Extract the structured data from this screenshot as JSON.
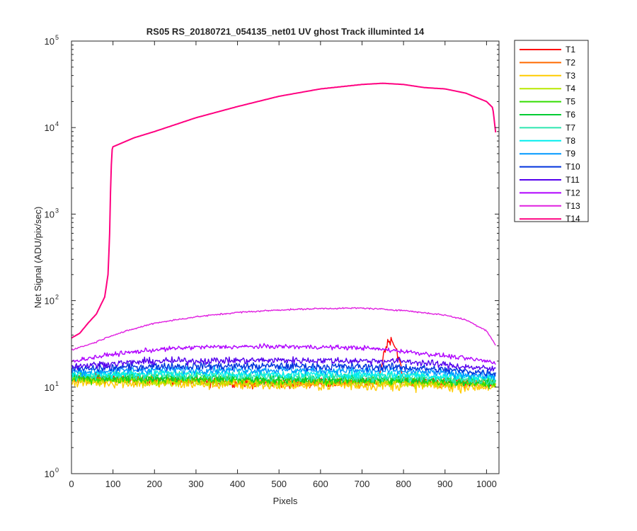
{
  "chart_data": {
    "type": "line",
    "title": "RS05 RS_20180721_054135_net01   UV ghost        Track illuminted 14",
    "xlabel": "Pixels",
    "ylabel": "Net Signal (ADU/pix/sec)",
    "xlim": [
      0,
      1030
    ],
    "ylim": [
      1,
      100000
    ],
    "yscale": "log",
    "xticks": [
      "0",
      "100",
      "200",
      "300",
      "400",
      "500",
      "600",
      "700",
      "800",
      "900",
      "1000"
    ],
    "yticks": [
      {
        "base": "10",
        "exp": "0"
      },
      {
        "base": "10",
        "exp": "1"
      },
      {
        "base": "10",
        "exp": "2"
      },
      {
        "base": "10",
        "exp": "3"
      },
      {
        "base": "10",
        "exp": "4"
      },
      {
        "base": "10",
        "exp": "5"
      }
    ],
    "grid": false,
    "legend_position": "outside-right",
    "series": [
      {
        "name": "T1",
        "color": "#ff0000",
        "noise": 0.06,
        "points": [
          [
            0,
            13
          ],
          [
            100,
            12.5
          ],
          [
            300,
            11.5
          ],
          [
            500,
            11
          ],
          [
            700,
            11.5
          ],
          [
            740,
            12
          ],
          [
            755,
            28
          ],
          [
            770,
            37
          ],
          [
            785,
            26
          ],
          [
            800,
            12
          ],
          [
            900,
            11.5
          ],
          [
            1000,
            11
          ],
          [
            1023,
            10.5
          ]
        ]
      },
      {
        "name": "T2",
        "color": "#ff6a00",
        "noise": 0.06,
        "points": [
          [
            0,
            12.5
          ],
          [
            200,
            12
          ],
          [
            500,
            11.2
          ],
          [
            800,
            11.2
          ],
          [
            1023,
            10.8
          ]
        ]
      },
      {
        "name": "T3",
        "color": "#ffcc00",
        "noise": 0.07,
        "points": [
          [
            0,
            11.5
          ],
          [
            200,
            11
          ],
          [
            500,
            10.5
          ],
          [
            800,
            10.5
          ],
          [
            1023,
            10
          ]
        ]
      },
      {
        "name": "T4",
        "color": "#b8e800",
        "noise": 0.06,
        "points": [
          [
            0,
            12
          ],
          [
            200,
            11.8
          ],
          [
            500,
            11.3
          ],
          [
            800,
            11.2
          ],
          [
            1023,
            10.8
          ]
        ]
      },
      {
        "name": "T5",
        "color": "#33dd00",
        "noise": 0.06,
        "points": [
          [
            0,
            12.5
          ],
          [
            200,
            12.5
          ],
          [
            500,
            12
          ],
          [
            800,
            12
          ],
          [
            1023,
            11.2
          ]
        ]
      },
      {
        "name": "T6",
        "color": "#00cc33",
        "noise": 0.06,
        "points": [
          [
            0,
            13
          ],
          [
            200,
            13
          ],
          [
            500,
            12.5
          ],
          [
            800,
            12.3
          ],
          [
            1023,
            11.5
          ]
        ]
      },
      {
        "name": "T7",
        "color": "#2ee6b0",
        "noise": 0.06,
        "points": [
          [
            0,
            13.5
          ],
          [
            200,
            13.8
          ],
          [
            500,
            13.3
          ],
          [
            800,
            13
          ],
          [
            1023,
            12
          ]
        ]
      },
      {
        "name": "T8",
        "color": "#00eeee",
        "noise": 0.055,
        "points": [
          [
            0,
            14
          ],
          [
            200,
            14.5
          ],
          [
            500,
            14.2
          ],
          [
            800,
            14
          ],
          [
            1023,
            12.8
          ]
        ]
      },
      {
        "name": "T9",
        "color": "#0099ff",
        "noise": 0.05,
        "points": [
          [
            0,
            15
          ],
          [
            200,
            16
          ],
          [
            500,
            15.8
          ],
          [
            800,
            15.3
          ],
          [
            1023,
            13.5
          ]
        ]
      },
      {
        "name": "T10",
        "color": "#0033dd",
        "noise": 0.05,
        "points": [
          [
            0,
            16
          ],
          [
            200,
            17.5
          ],
          [
            500,
            17.5
          ],
          [
            800,
            17
          ],
          [
            1023,
            14.5
          ]
        ]
      },
      {
        "name": "T11",
        "color": "#5500ee",
        "noise": 0.045,
        "points": [
          [
            0,
            17.5
          ],
          [
            200,
            20
          ],
          [
            500,
            20.5
          ],
          [
            800,
            20
          ],
          [
            1023,
            16
          ]
        ]
      },
      {
        "name": "T12",
        "color": "#b000ff",
        "noise": 0.03,
        "points": [
          [
            0,
            20
          ],
          [
            100,
            24
          ],
          [
            200,
            27
          ],
          [
            300,
            29
          ],
          [
            500,
            29.5
          ],
          [
            700,
            28.5
          ],
          [
            800,
            26
          ],
          [
            900,
            23
          ],
          [
            1000,
            20
          ],
          [
            1023,
            19
          ]
        ]
      },
      {
        "name": "T13",
        "color": "#e020e0",
        "noise": 0.01,
        "points": [
          [
            0,
            27
          ],
          [
            50,
            32
          ],
          [
            100,
            40
          ],
          [
            150,
            47
          ],
          [
            200,
            55
          ],
          [
            300,
            65
          ],
          [
            400,
            73
          ],
          [
            500,
            78
          ],
          [
            600,
            81
          ],
          [
            700,
            82
          ],
          [
            800,
            77
          ],
          [
            900,
            68
          ],
          [
            950,
            60
          ],
          [
            1000,
            45
          ],
          [
            1023,
            30
          ]
        ]
      },
      {
        "name": "T14",
        "color": "#ff0080",
        "noise": 0.0,
        "points": [
          [
            0,
            37
          ],
          [
            20,
            42
          ],
          [
            40,
            55
          ],
          [
            60,
            70
          ],
          [
            80,
            110
          ],
          [
            88,
            200
          ],
          [
            92,
            600
          ],
          [
            95,
            3000
          ],
          [
            98,
            5600
          ],
          [
            100,
            6000
          ],
          [
            150,
            7600
          ],
          [
            200,
            9000
          ],
          [
            300,
            13000
          ],
          [
            400,
            17500
          ],
          [
            500,
            23000
          ],
          [
            600,
            28000
          ],
          [
            700,
            31500
          ],
          [
            750,
            32500
          ],
          [
            800,
            31500
          ],
          [
            850,
            29000
          ],
          [
            900,
            28000
          ],
          [
            950,
            25000
          ],
          [
            1000,
            20000
          ],
          [
            1015,
            17000
          ],
          [
            1023,
            8000
          ]
        ]
      }
    ]
  }
}
